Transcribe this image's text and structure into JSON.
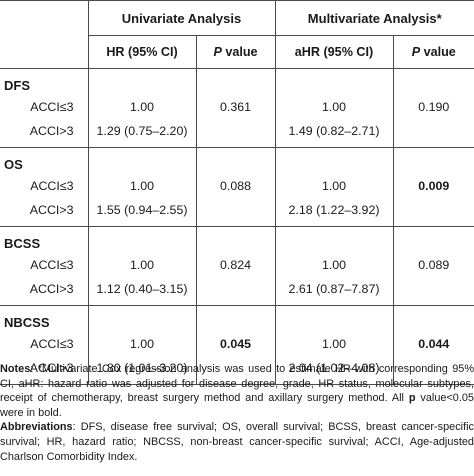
{
  "header": {
    "group_univariate": "Univariate Analysis",
    "group_multivariate": "Multivariate Analysis*",
    "hr_col": "HR (95% CI)",
    "p_col_italic": "P",
    "p_col_rest": " value",
    "ahr_col": "aHR (95% CI)",
    "p2_col_italic": "P",
    "p2_col_rest": " value"
  },
  "groups": [
    {
      "name": "DFS",
      "rows": [
        {
          "label": "ACCI≤3",
          "hr": "1.00",
          "p": "0.361",
          "ahr": "1.00",
          "p2": "0.190"
        },
        {
          "label": "ACCI>3",
          "hr": "1.29 (0.75–2.20)",
          "p": "",
          "ahr": "1.49 (0.82–2.71)",
          "p2": ""
        }
      ]
    },
    {
      "name": "OS",
      "rows": [
        {
          "label": "ACCI≤3",
          "hr": "1.00",
          "p": "0.088",
          "ahr": "1.00",
          "p2": "0.009"
        },
        {
          "label": "ACCI>3",
          "hr": "1.55 (0.94–2.55)",
          "p": "",
          "ahr": "2.18 (1.22–3.92)",
          "p2": ""
        }
      ]
    },
    {
      "name": "BCSS",
      "rows": [
        {
          "label": "ACCI≤3",
          "hr": "1.00",
          "p": "0.824",
          "ahr": "1.00",
          "p2": "0.089"
        },
        {
          "label": "ACCI>3",
          "hr": "1.12 (0.40–3.15)",
          "p": "",
          "ahr": "2.61 (0.87–7.87)",
          "p2": ""
        }
      ]
    },
    {
      "name": "NBCSS",
      "rows": [
        {
          "label": "ACCI≤3",
          "hr": "1.00",
          "p": "0.045",
          "ahr": "1.00",
          "p2": "0.044"
        },
        {
          "label": "ACCI>3",
          "hr": "1.80 (1.01–3.20)",
          "p": "",
          "ahr": "2.04 (1.02–4.08)",
          "p2": ""
        }
      ]
    }
  ],
  "notes": {
    "notes_label": "Notes",
    "notes_text": ": *Multivariate Cox regression analysis was used to estimate HR with corresponding 95% CI, aHR: hazard ratio was adjusted for disease degree, grade, HR status, molecular subtypes, receipt of chemotherapy, breast surgery method and axillary surgery method. All ",
    "notes_p": "p",
    "notes_tail": " value<0.05 were in bold.",
    "abbr_label": "Abbreviations",
    "abbr_text": ": DFS, disease free survival; OS, overall survival; BCSS, breast cancer-specific survival; HR, hazard ratio; NBCSS, non-breast cancer-specific survival; ACCI, Age-adjusted Charlson Comorbidity Index."
  }
}
